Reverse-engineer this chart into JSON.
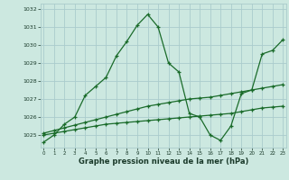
{
  "xlabel": "Graphe pression niveau de la mer (hPa)",
  "bg_color": "#cce8e0",
  "grid_color": "#aacccc",
  "line_color": "#1a6b2a",
  "ylim": [
    1024.3,
    1032.3
  ],
  "yticks": [
    1025,
    1026,
    1027,
    1028,
    1029,
    1030,
    1031,
    1032
  ],
  "xlim": [
    -0.3,
    23.3
  ],
  "xticks": [
    0,
    1,
    2,
    3,
    4,
    5,
    6,
    7,
    8,
    9,
    10,
    11,
    12,
    13,
    14,
    15,
    16,
    17,
    18,
    19,
    20,
    21,
    22,
    23
  ],
  "series1": [
    1024.6,
    1025.0,
    1025.6,
    1026.0,
    1027.2,
    1027.7,
    1028.2,
    1029.4,
    1030.2,
    1031.1,
    1031.7,
    1031.0,
    1029.0,
    1028.5,
    1026.2,
    1026.0,
    1025.0,
    1024.7,
    1025.5,
    1027.3,
    1027.5,
    1029.5,
    1029.7,
    1030.3
  ],
  "series2": [
    1025.1,
    1025.25,
    1025.4,
    1025.55,
    1025.7,
    1025.85,
    1026.0,
    1026.15,
    1026.3,
    1026.45,
    1026.6,
    1026.7,
    1026.8,
    1026.9,
    1027.0,
    1027.05,
    1027.1,
    1027.2,
    1027.3,
    1027.4,
    1027.5,
    1027.6,
    1027.7,
    1027.8
  ],
  "series3": [
    1025.0,
    1025.1,
    1025.2,
    1025.3,
    1025.4,
    1025.5,
    1025.6,
    1025.65,
    1025.7,
    1025.75,
    1025.8,
    1025.85,
    1025.9,
    1025.95,
    1026.0,
    1026.05,
    1026.1,
    1026.15,
    1026.2,
    1026.3,
    1026.4,
    1026.5,
    1026.55,
    1026.6
  ]
}
